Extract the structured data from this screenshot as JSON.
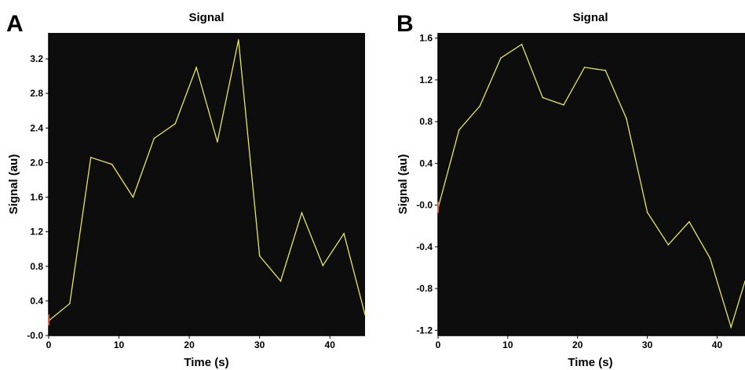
{
  "chart_data": [
    {
      "type": "line",
      "panel_label": "A",
      "title": "Signal",
      "xlabel": "Time (s)",
      "ylabel": "Signal (au)",
      "xlim": [
        0,
        45
      ],
      "ylim": [
        -0.0,
        3.5
      ],
      "x_ticks": [
        "0",
        "10",
        "20",
        "30",
        "40"
      ],
      "y_ticks": [
        "-0.0",
        "0.4",
        "0.8",
        "1.2",
        "1.6",
        "2.0",
        "2.4",
        "2.8",
        "3.2"
      ],
      "plot_background": "#0d0d0d",
      "line_color": "#e6e65a",
      "start_marker_color": "#d9642e",
      "grid": false,
      "series": [
        {
          "x": [
            0,
            3,
            6,
            9,
            12,
            15,
            18,
            21,
            24,
            27,
            30,
            33,
            36,
            39,
            42,
            45
          ],
          "y": [
            0.17,
            0.37,
            2.06,
            1.98,
            1.6,
            2.28,
            2.45,
            3.1,
            2.24,
            3.42,
            0.92,
            0.63,
            1.42,
            0.81,
            1.18,
            0.24
          ]
        }
      ]
    },
    {
      "type": "line",
      "panel_label": "B",
      "title": "Signal",
      "xlabel": "Time (s)",
      "ylabel": "Signal (au)",
      "xlim": [
        0,
        44
      ],
      "ylim": [
        -1.25,
        1.65
      ],
      "x_ticks": [
        "0",
        "10",
        "20",
        "30",
        "40"
      ],
      "y_ticks": [
        "-1.2",
        "-0.8",
        "-0.4",
        "-0.0",
        "0.4",
        "0.8",
        "1.2",
        "1.6"
      ],
      "plot_background": "#0d0d0d",
      "line_color": "#e6e65a",
      "start_marker_color": "#d9642e",
      "grid": false,
      "series": [
        {
          "x": [
            0,
            3,
            6,
            9,
            12,
            15,
            18,
            21,
            24,
            27,
            30,
            33,
            36,
            39,
            42,
            44
          ],
          "y": [
            -0.03,
            0.72,
            0.95,
            1.41,
            1.54,
            1.03,
            0.96,
            1.32,
            1.29,
            0.83,
            -0.07,
            -0.38,
            -0.16,
            -0.51,
            -1.17,
            -0.73
          ]
        }
      ]
    }
  ]
}
